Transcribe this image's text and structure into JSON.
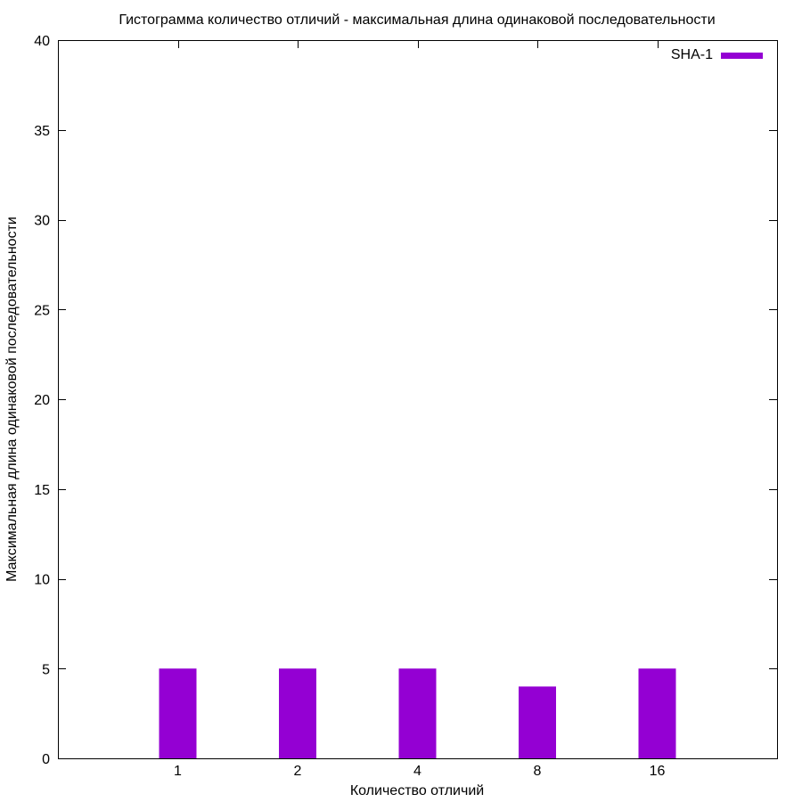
{
  "chart_data": {
    "type": "bar",
    "title": "Гистограмма количество отличий - максимальная длина одинаковой последовательности",
    "xlabel": "Количество отличий",
    "ylabel": "Максимальная длина одинаковой последовательности",
    "categories": [
      "1",
      "2",
      "4",
      "8",
      "16"
    ],
    "series": [
      {
        "name": "SHA-1",
        "values": [
          5,
          5,
          5,
          4,
          5
        ],
        "color": "#9400d3"
      }
    ],
    "ylim": [
      0,
      40
    ],
    "yticks": [
      0,
      5,
      10,
      15,
      20,
      25,
      30,
      35,
      40
    ],
    "grid": false,
    "legend_position": "top-right"
  }
}
